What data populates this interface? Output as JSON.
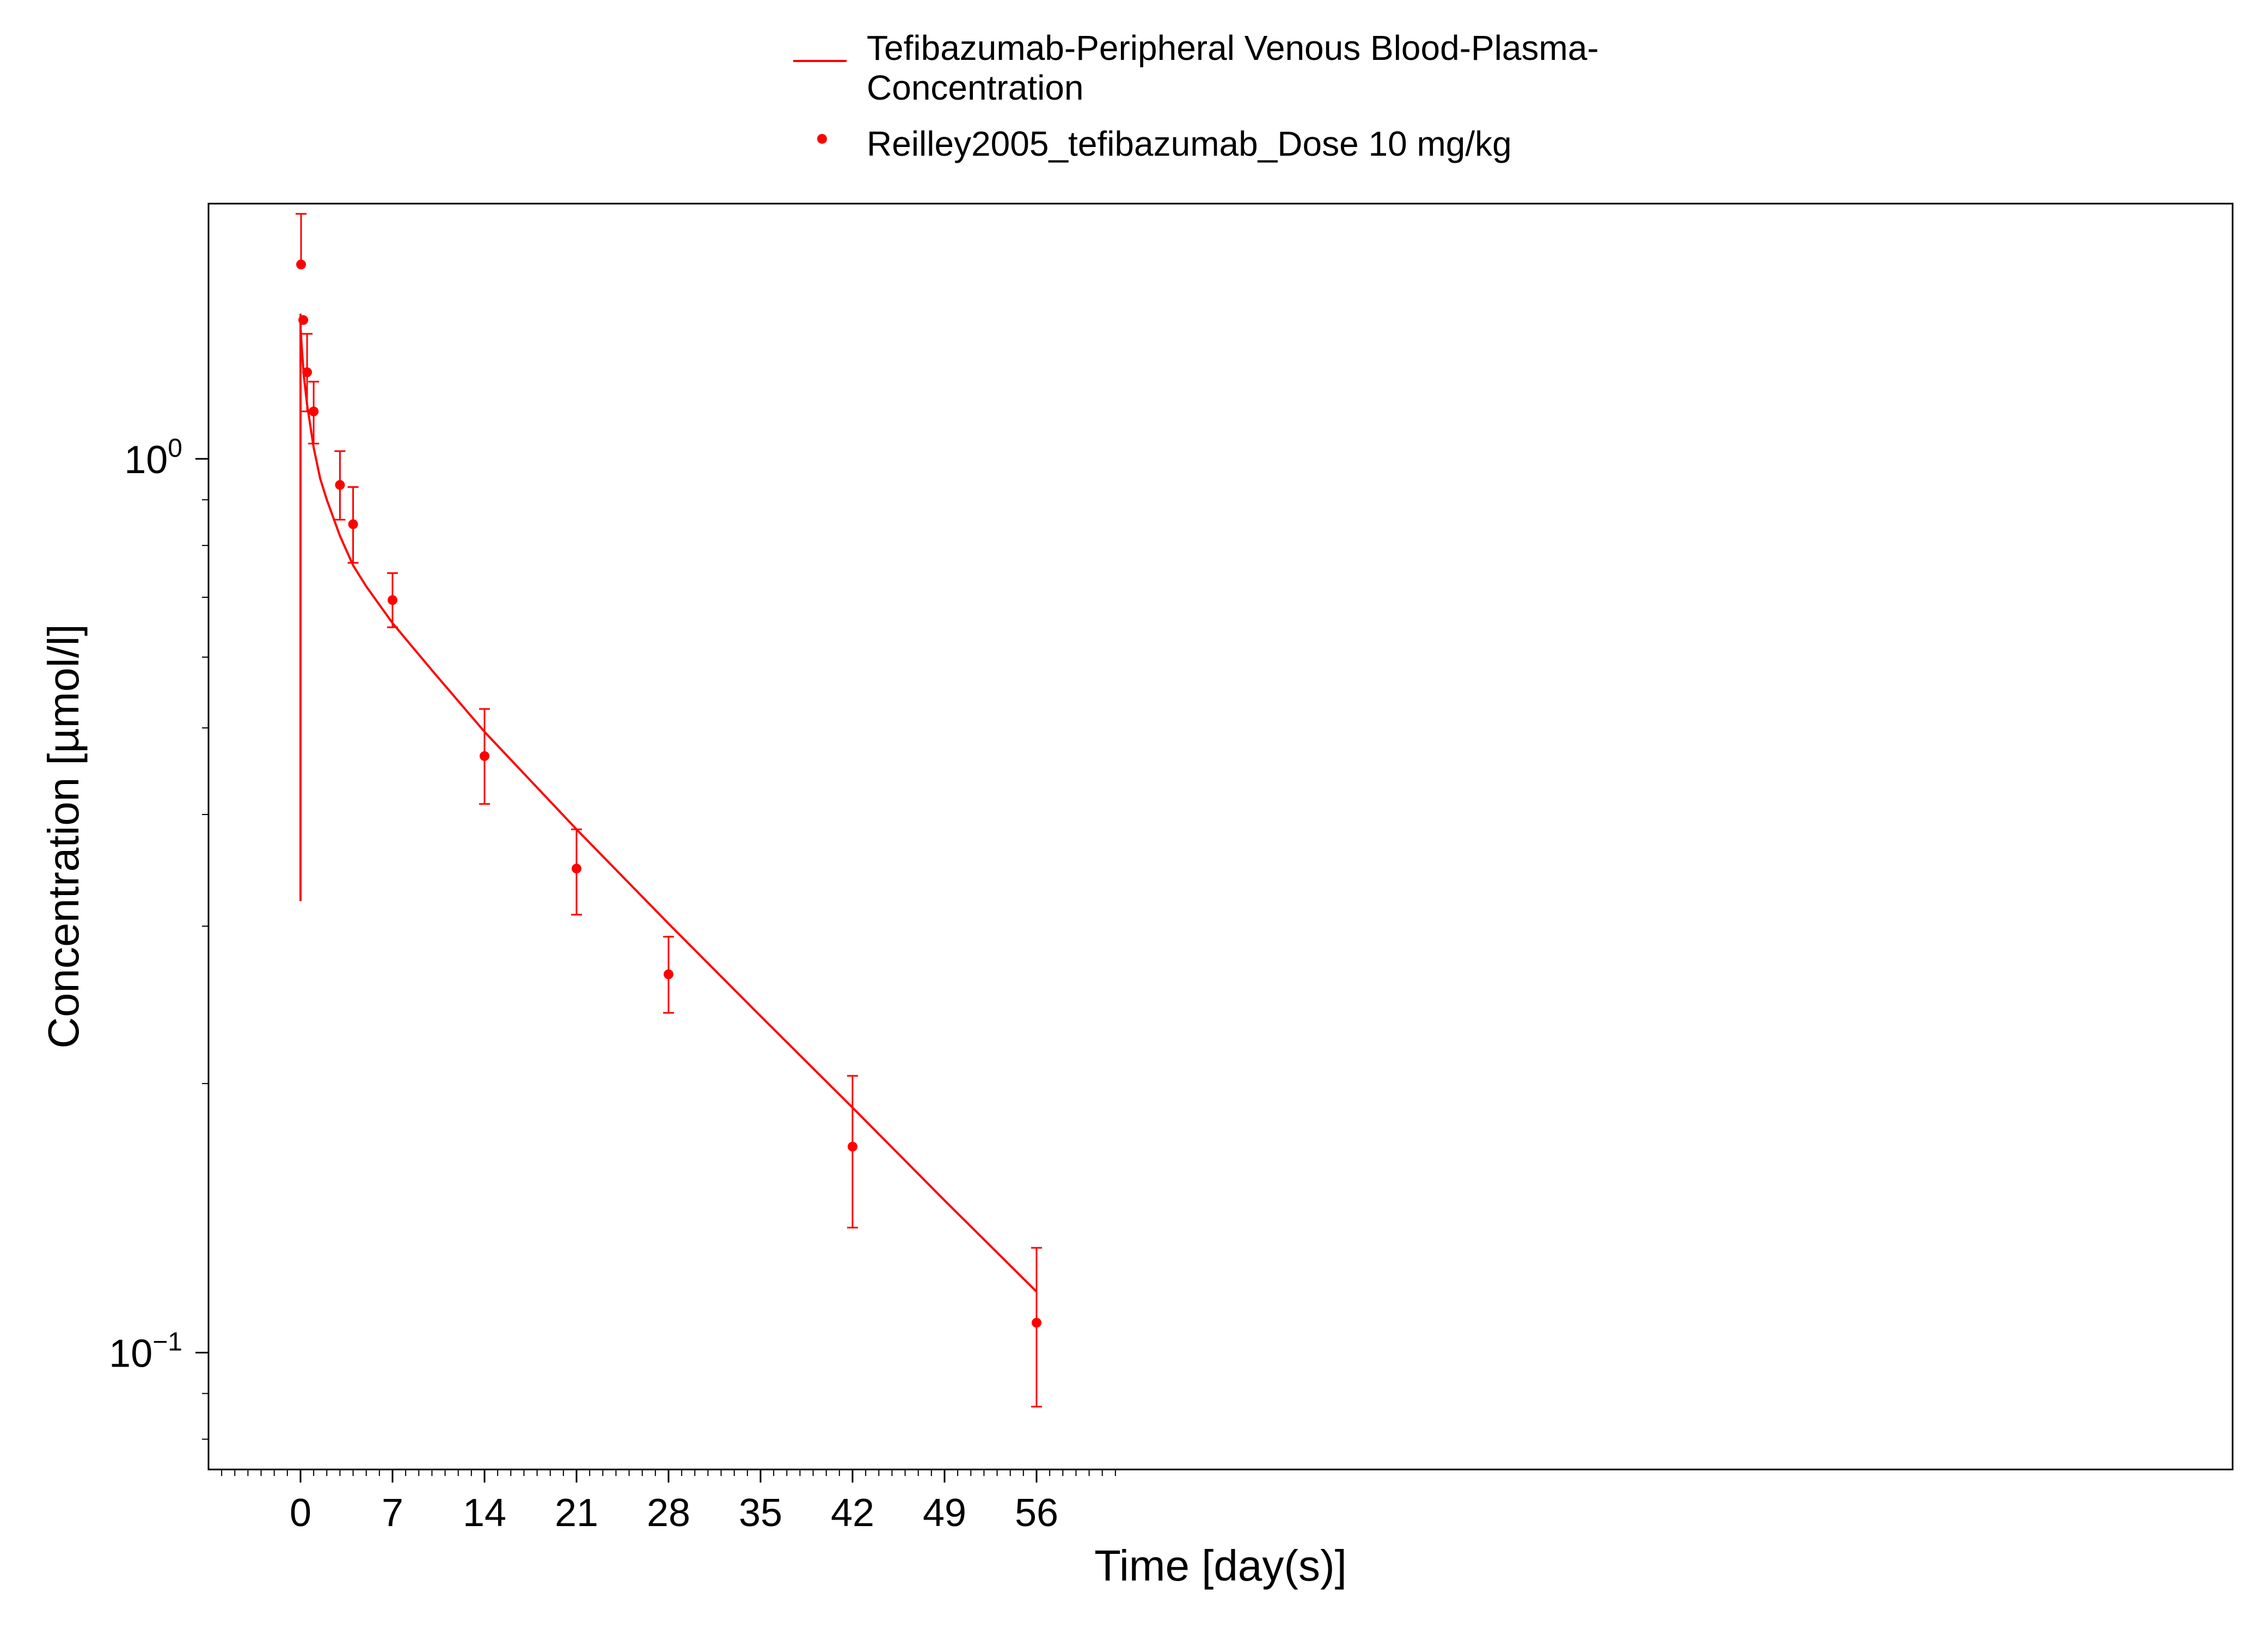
{
  "chart_data": {
    "type": "line",
    "xlabel": "Time [day(s)]",
    "ylabel": "Concentration [µmol/l]",
    "xlim": [
      -7,
      147
    ],
    "ylim": [
      0.074,
      1.93
    ],
    "y_scale": "log",
    "x_ticks": [
      0,
      7,
      14,
      21,
      28,
      35,
      42,
      49,
      56
    ],
    "x_tick_labels": [
      "0",
      "7",
      "14",
      "21",
      "28",
      "35",
      "42",
      "49",
      "56"
    ],
    "y_ticks": [
      {
        "value": 1.0,
        "base": "10",
        "exp": "0"
      },
      {
        "value": 0.1,
        "base": "10",
        "exp": "−1"
      }
    ],
    "grid": false,
    "legend_position": "top-center",
    "series": [
      {
        "name": "Tefibazumab-Peripheral Venous Blood-Plasma-Concentration",
        "name_lines": [
          "Tefibazumab-Peripheral Venous Blood-Plasma-",
          "Concentration"
        ],
        "kind": "line",
        "color": "#ff0000",
        "x": [
          0,
          0,
          0.01,
          0.1,
          0.25,
          0.5,
          1,
          1.5,
          2,
          3,
          4,
          5,
          7,
          10,
          14,
          21,
          28,
          35,
          42,
          49,
          56
        ],
        "y": [
          0.32,
          1.45,
          1.4,
          1.33,
          1.24,
          1.15,
          1.03,
          0.95,
          0.9,
          0.82,
          0.76,
          0.72,
          0.655,
          0.58,
          0.495,
          0.385,
          0.302,
          0.238,
          0.188,
          0.148,
          0.117
        ]
      },
      {
        "name": "Reilley2005_tefibazumab_Dose 10 mg/kg",
        "kind": "scatter",
        "color": "#ff0000",
        "x": [
          0.042,
          0.21,
          0.5,
          1.0,
          3.0,
          4.0,
          7.0,
          14.0,
          21.0,
          28.0,
          42.0,
          56.0
        ],
        "y": [
          1.65,
          1.43,
          1.25,
          1.13,
          0.935,
          0.845,
          0.695,
          0.465,
          0.348,
          0.265,
          0.17,
          0.108
        ],
        "y_lower": [
          null,
          null,
          1.13,
          1.04,
          0.855,
          0.765,
          0.648,
          0.411,
          0.309,
          0.24,
          0.138,
          0.087
        ],
        "y_upper": [
          1.88,
          null,
          1.38,
          1.22,
          1.02,
          0.93,
          0.745,
          0.525,
          0.385,
          0.292,
          0.204,
          0.131
        ]
      }
    ]
  }
}
